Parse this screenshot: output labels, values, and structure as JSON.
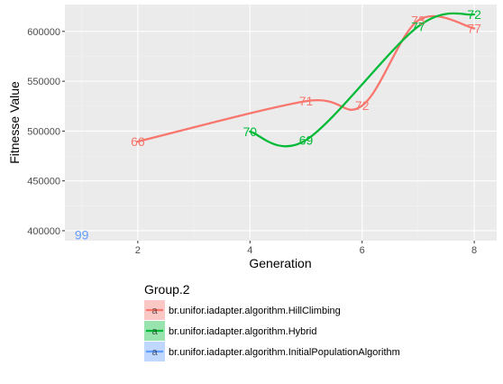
{
  "chart_data": {
    "type": "line",
    "xlabel": "Generation",
    "ylabel": "Fitnesse Value",
    "xlim": [
      0.7,
      8.4
    ],
    "ylim": [
      390000,
      627000
    ],
    "x_ticks": [
      2,
      4,
      6,
      8
    ],
    "y_ticks": [
      400000,
      450000,
      500000,
      550000,
      600000
    ],
    "x_tick_labels": [
      "2",
      "4",
      "6",
      "8"
    ],
    "y_tick_labels": [
      "400000",
      "450000",
      "500000",
      "550000",
      "600000"
    ],
    "grid": true,
    "legend_title": "Group.2",
    "legend_placement": "bottom",
    "series": [
      {
        "name": "br.unifor.iadapter.algorithm.HillClimbing",
        "color": "#F8766D",
        "x": [
          2,
          5,
          6,
          7,
          8
        ],
        "y": [
          489500,
          530000,
          525500,
          611000,
          603000
        ],
        "labels": [
          "66",
          "71",
          "72",
          "73",
          "77"
        ]
      },
      {
        "name": "br.unifor.iadapter.algorithm.Hybrid",
        "color": "#00BA38",
        "x": [
          4,
          5,
          7,
          8
        ],
        "y": [
          499500,
          491000,
          605000,
          617000
        ],
        "labels": [
          "70",
          "69",
          "77",
          "72"
        ]
      },
      {
        "name": "br.unifor.iadapter.algorithm.InitialPopulationAlgorithm",
        "color": "#619CFF",
        "x": [
          1
        ],
        "y": [
          396000
        ],
        "labels": [
          "99"
        ]
      }
    ]
  }
}
